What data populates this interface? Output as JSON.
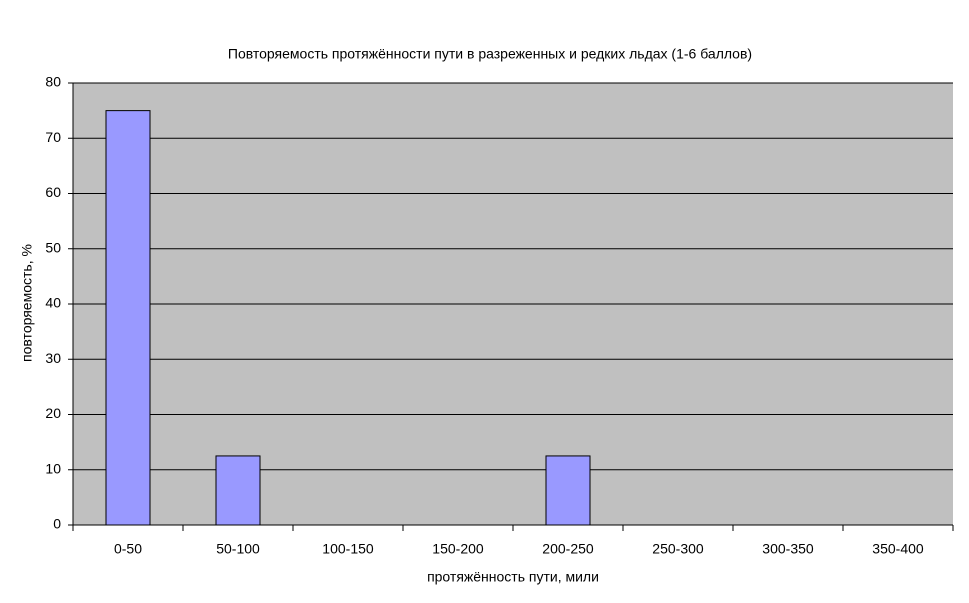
{
  "chart_data": {
    "type": "bar",
    "title": "Повторяемость протяжённости пути в разреженных и редких льдах (1-6 баллов)",
    "x_label": "протяжённость пути, мили",
    "y_label": "повторяемость, %",
    "categories": [
      "0-50",
      "50-100",
      "100-150",
      "150-200",
      "200-250",
      "250-300",
      "300-350",
      "350-400"
    ],
    "values": [
      75,
      12.5,
      0,
      0,
      12.5,
      0,
      0,
      0
    ],
    "color": "#9999ff",
    "ylim": [
      0,
      80
    ],
    "yticks": [
      0,
      10,
      20,
      30,
      40,
      50,
      60,
      70,
      80
    ],
    "grid": true
  }
}
